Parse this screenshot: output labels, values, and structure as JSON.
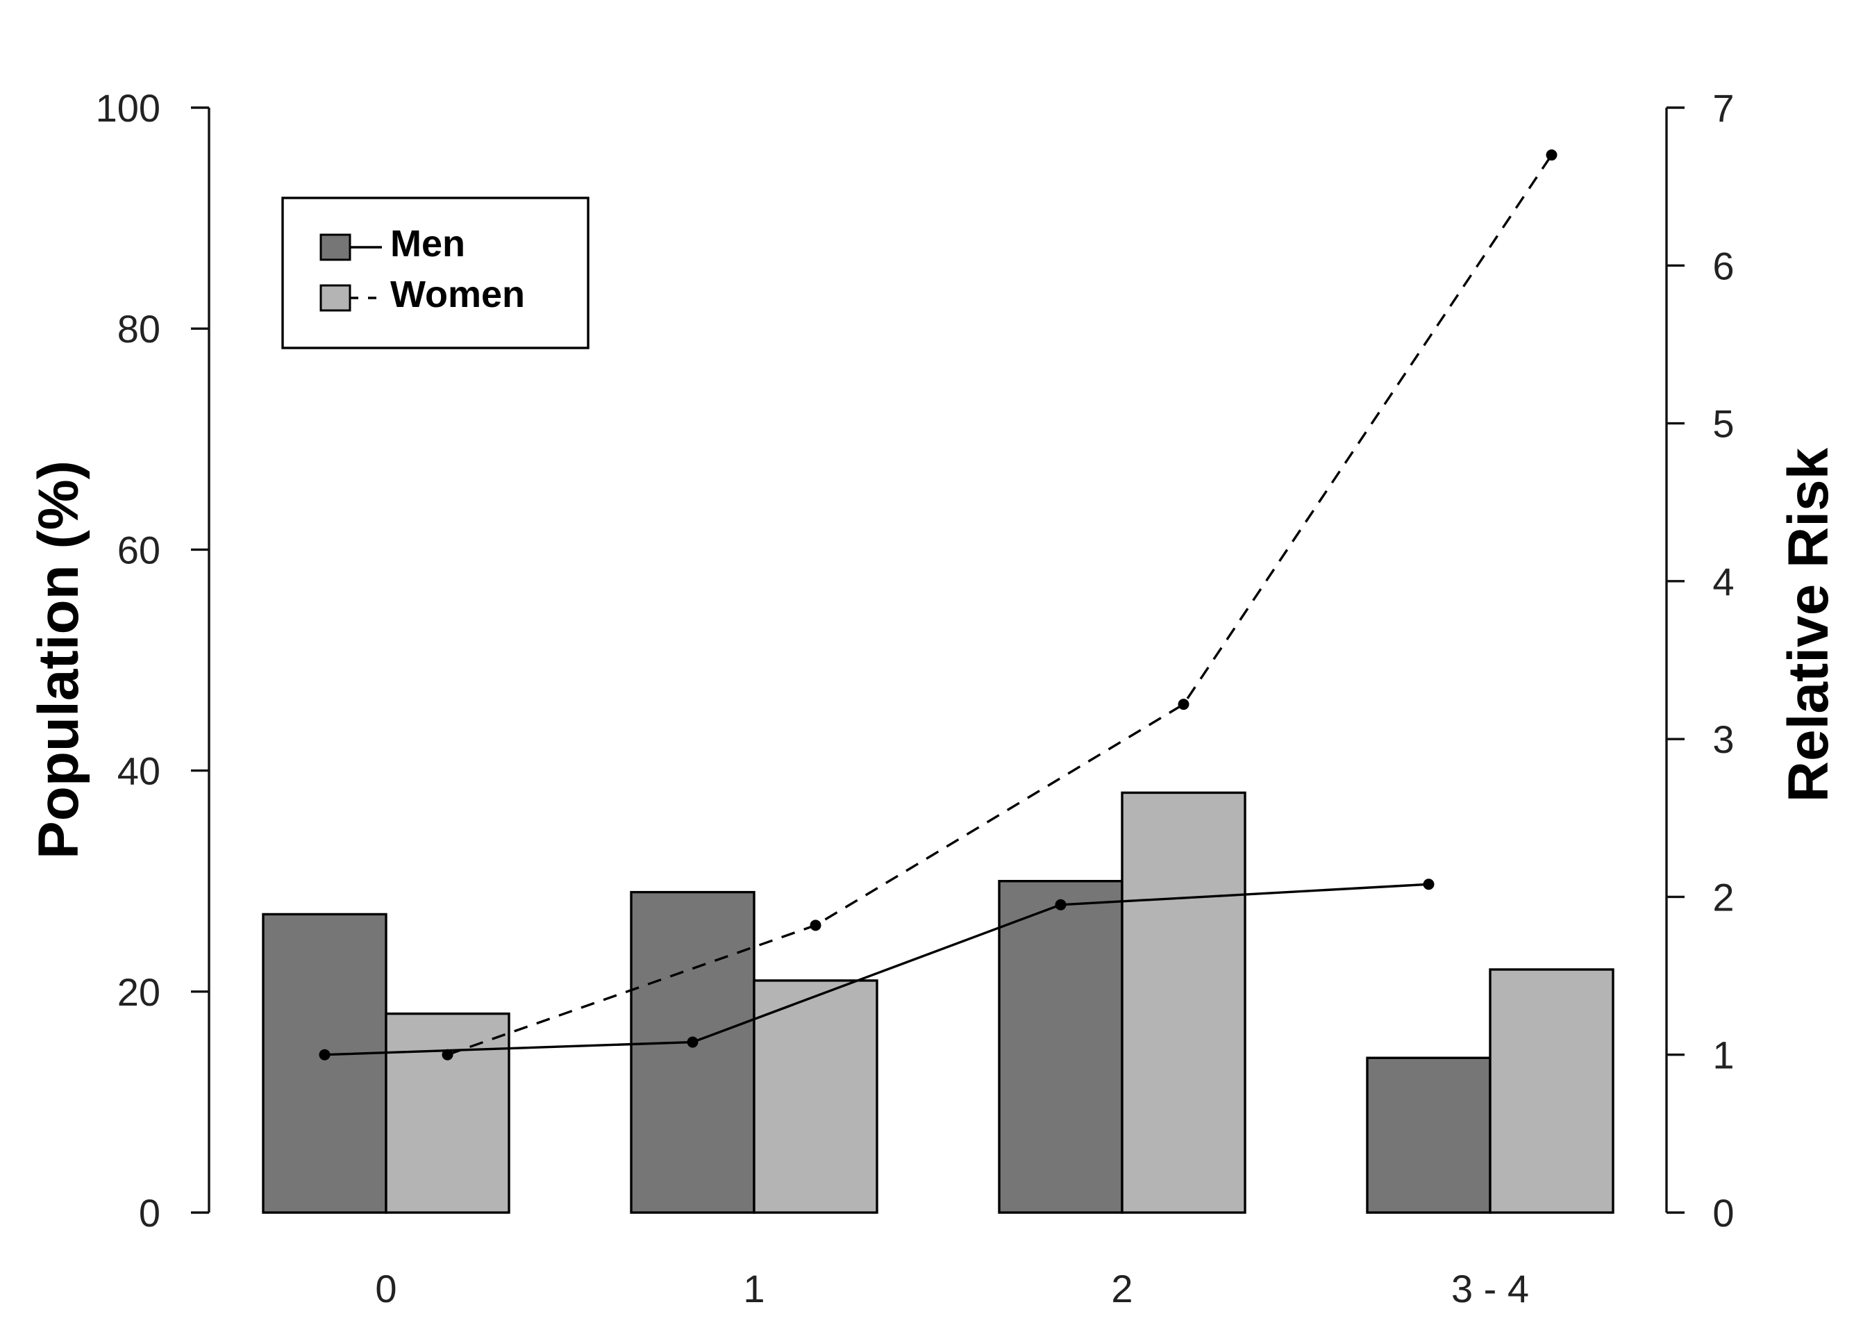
{
  "chart_data": {
    "type": "bar",
    "categories": [
      "0",
      "1",
      "2",
      "3 - 4"
    ],
    "bar_series": [
      {
        "name": "Men",
        "values": [
          27,
          29,
          30,
          14
        ],
        "color": "#767676"
      },
      {
        "name": "Women",
        "values": [
          18,
          21,
          38,
          22
        ],
        "color": "#b4b4b4"
      }
    ],
    "line_series": [
      {
        "name": "Men",
        "values": [
          1.0,
          1.08,
          1.95,
          2.08
        ],
        "line_style": "solid"
      },
      {
        "name": "Women",
        "values": [
          1.0,
          1.82,
          3.22,
          6.7
        ],
        "line_style": "dashed"
      }
    ],
    "ylabel": "Population (%)",
    "y2label": "Relative Risk",
    "ylim": [
      0,
      100
    ],
    "y2lim": [
      0,
      7
    ],
    "yticks": [
      "0",
      "20",
      "40",
      "60",
      "80",
      "100"
    ],
    "y2ticks": [
      "0",
      "1",
      "2",
      "3",
      "4",
      "5",
      "6",
      "7"
    ],
    "legend": {
      "placement": "top-left",
      "entries": [
        {
          "label": "Men",
          "line_style": "solid",
          "color": "#767676"
        },
        {
          "label": "Women",
          "line_style": "dashed",
          "color": "#b4b4b4"
        }
      ]
    },
    "grid": false
  }
}
